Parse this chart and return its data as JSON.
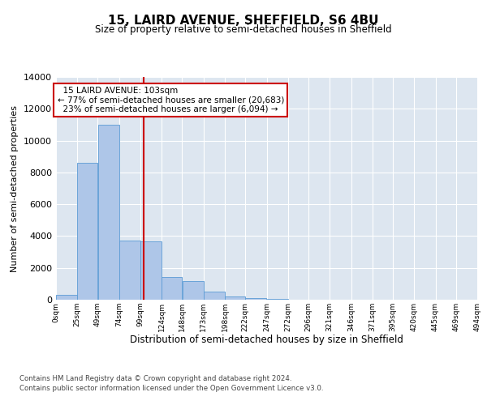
{
  "title": "15, LAIRD AVENUE, SHEFFIELD, S6 4BU",
  "subtitle": "Size of property relative to semi-detached houses in Sheffield",
  "xlabel": "Distribution of semi-detached houses by size in Sheffield",
  "ylabel": "Number of semi-detached properties",
  "property_size": 103,
  "property_label": "15 LAIRD AVENUE: 103sqm",
  "pct_smaller": 77,
  "pct_larger": 23,
  "n_smaller": "20,683",
  "n_larger": "6,094",
  "bar_color": "#aec6e8",
  "bar_edge_color": "#5b9bd5",
  "vline_color": "#cc0000",
  "annotation_box_color": "#ffffff",
  "annotation_box_edge": "#cc0000",
  "background_color": "#dde6f0",
  "grid_color": "#ffffff",
  "bins": [
    0,
    25,
    49,
    74,
    99,
    124,
    148,
    173,
    198,
    222,
    247,
    272,
    296,
    321,
    346,
    371,
    395,
    420,
    445,
    469,
    494
  ],
  "bin_labels": [
    "0sqm",
    "25sqm",
    "49sqm",
    "74sqm",
    "99sqm",
    "124sqm",
    "148sqm",
    "173sqm",
    "198sqm",
    "222sqm",
    "247sqm",
    "272sqm",
    "296sqm",
    "321sqm",
    "346sqm",
    "371sqm",
    "395sqm",
    "420sqm",
    "445sqm",
    "469sqm",
    "494sqm"
  ],
  "counts": [
    300,
    8600,
    11000,
    3700,
    3650,
    1450,
    1150,
    500,
    200,
    80,
    50,
    0,
    0,
    0,
    0,
    0,
    0,
    0,
    0,
    0
  ],
  "ylim": [
    0,
    14000
  ],
  "yticks": [
    0,
    2000,
    4000,
    6000,
    8000,
    10000,
    12000,
    14000
  ],
  "footer_line1": "Contains HM Land Registry data © Crown copyright and database right 2024.",
  "footer_line2": "Contains public sector information licensed under the Open Government Licence v3.0."
}
